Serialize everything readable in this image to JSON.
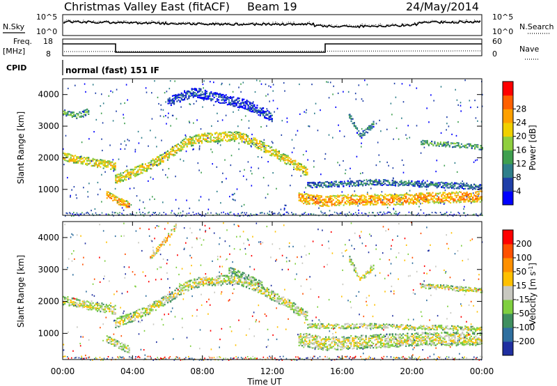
{
  "header": {
    "radar": "Christmas Valley East (fitACF)",
    "beam": "Beam 19",
    "date": "24/May/2014"
  },
  "top_panels": {
    "nsky_label": "N.Sky",
    "nsearch_label": "N.Search",
    "freq_label": "Freq.",
    "freq_unit": "[MHz]",
    "nave_label": "Nave",
    "cpid_label": "CPID",
    "cpid_text": "normal (fast) 151 IF",
    "nsky_ticks": [
      "10^5",
      "10^0"
    ],
    "nsearch_ticks": [
      "10^5",
      "10^0"
    ],
    "freq_ticks": [
      "18",
      "8"
    ],
    "nave_ticks": [
      "60",
      "0"
    ]
  },
  "x_axis": {
    "label": "Time UT",
    "ticks": [
      "00:00",
      "04:00",
      "08:00",
      "12:00",
      "16:00",
      "20:00",
      "00:00"
    ]
  },
  "power_colorbar": {
    "label": "Power [dB]",
    "ticks": [
      "4",
      "8",
      "12",
      "16",
      "20",
      "24",
      "28"
    ],
    "colors": [
      "#0000ff",
      "#1f3fa8",
      "#2f7f8a",
      "#3f9f4f",
      "#8fcf3f",
      "#f0d000",
      "#ffa000",
      "#ff6000",
      "#ff0000"
    ]
  },
  "velocity_colorbar": {
    "label": "Velocity [m s^-1]",
    "ticks": [
      "200",
      "100",
      "50",
      "15",
      "-15",
      "-50",
      "-100",
      "-200"
    ],
    "colors": [
      "#1f2fa0",
      "#2f6f9f",
      "#3f8f5f",
      "#7fcf3f",
      "#c8c8c0",
      "#ffc000",
      "#ff9000",
      "#ff5000",
      "#ff0000"
    ]
  },
  "chart_data": [
    {
      "type": "heatmap",
      "title": "Power",
      "xlabel": "Time UT",
      "ylabel": "Slant Range [km]",
      "xlim": [
        0,
        24
      ],
      "ylim": [
        180,
        4500
      ],
      "yticks": [
        1000,
        2000,
        3000,
        4000
      ],
      "bands": [
        {
          "x": [
            0.0,
            1.0,
            2.0,
            3.0
          ],
          "y": [
            2050,
            1950,
            1850,
            1750
          ],
          "w": 260,
          "level": 5
        },
        {
          "x": [
            0.0,
            0.8,
            1.5
          ],
          "y": [
            3450,
            3350,
            3500
          ],
          "w": 180,
          "level": 3
        },
        {
          "x": [
            3.0,
            4.0,
            5.0,
            6.0,
            7.0,
            8.0,
            9.0,
            10.0,
            11.0,
            12.0,
            13.0,
            14.0
          ],
          "y": [
            1350,
            1550,
            1800,
            2100,
            2500,
            2650,
            2680,
            2700,
            2500,
            2200,
            1900,
            1550
          ],
          "w": 300,
          "level": 5
        },
        {
          "x": [
            2.5,
            3.2,
            3.8
          ],
          "y": [
            850,
            650,
            500
          ],
          "w": 220,
          "level": 6
        },
        {
          "x": [
            13.5,
            15.0,
            17.0,
            19.0,
            21.0,
            24.0
          ],
          "y": [
            750,
            650,
            700,
            700,
            750,
            800
          ],
          "w": 340,
          "level": 6
        },
        {
          "x": [
            14.0,
            16.0,
            18.0,
            20.0,
            22.0,
            24.0
          ],
          "y": [
            1150,
            1200,
            1250,
            1200,
            1150,
            1100
          ],
          "w": 180,
          "level": 2
        },
        {
          "x": [
            16.4,
            17.0,
            17.8
          ],
          "y": [
            3350,
            2700,
            3100
          ],
          "w": 180,
          "level": 2
        },
        {
          "x": [
            20.5,
            22.0,
            24.0
          ],
          "y": [
            2500,
            2450,
            2350
          ],
          "w": 150,
          "level": 3
        },
        {
          "x": [
            6.0,
            7.5,
            9.0,
            10.5,
            12.0
          ],
          "y": [
            3800,
            4100,
            3900,
            3700,
            3300
          ],
          "w": 300,
          "level": 1
        }
      ]
    },
    {
      "type": "heatmap",
      "title": "Velocity",
      "xlabel": "Time UT",
      "ylabel": "Slant Range [km]",
      "xlim": [
        0,
        24
      ],
      "ylim": [
        180,
        4500
      ],
      "yticks": [
        1000,
        2000,
        3000,
        4000
      ],
      "bands": [
        {
          "x": [
            0.0,
            1.0,
            2.0,
            3.0
          ],
          "y": [
            2050,
            1950,
            1850,
            1750
          ],
          "w": 280,
          "level": 4
        },
        {
          "x": [
            3.0,
            4.0,
            5.0,
            6.0,
            7.0,
            8.0,
            9.0,
            10.0,
            11.0,
            12.0,
            13.0,
            14.0
          ],
          "y": [
            1350,
            1550,
            1800,
            2100,
            2500,
            2650,
            2680,
            2700,
            2500,
            2200,
            1900,
            1550
          ],
          "w": 300,
          "level": 4
        },
        {
          "x": [
            2.5,
            3.2,
            3.8
          ],
          "y": [
            850,
            650,
            500
          ],
          "w": 220,
          "level": 4
        },
        {
          "x": [
            13.5,
            15.0,
            17.0,
            19.0,
            21.0,
            24.0
          ],
          "y": [
            850,
            700,
            750,
            800,
            850,
            850
          ],
          "w": 420,
          "level": 4
        },
        {
          "x": [
            14.0,
            16.0,
            18.0,
            20.0,
            22.0,
            24.0
          ],
          "y": [
            1250,
            1250,
            1250,
            1200,
            1200,
            1150
          ],
          "w": 150,
          "level": 4
        },
        {
          "x": [
            16.4,
            17.0,
            17.8
          ],
          "y": [
            3350,
            2700,
            3100
          ],
          "w": 180,
          "level": 4
        },
        {
          "x": [
            20.5,
            22.0,
            24.0
          ],
          "y": [
            2500,
            2450,
            2350
          ],
          "w": 150,
          "level": 4
        },
        {
          "x": [
            9.5,
            10.5,
            11.5
          ],
          "y": [
            3000,
            2800,
            2500
          ],
          "w": 200,
          "level": 3
        },
        {
          "x": [
            5.0,
            5.8,
            6.5
          ],
          "y": [
            3400,
            3900,
            4400
          ],
          "w": 180,
          "level": 5
        }
      ]
    }
  ]
}
